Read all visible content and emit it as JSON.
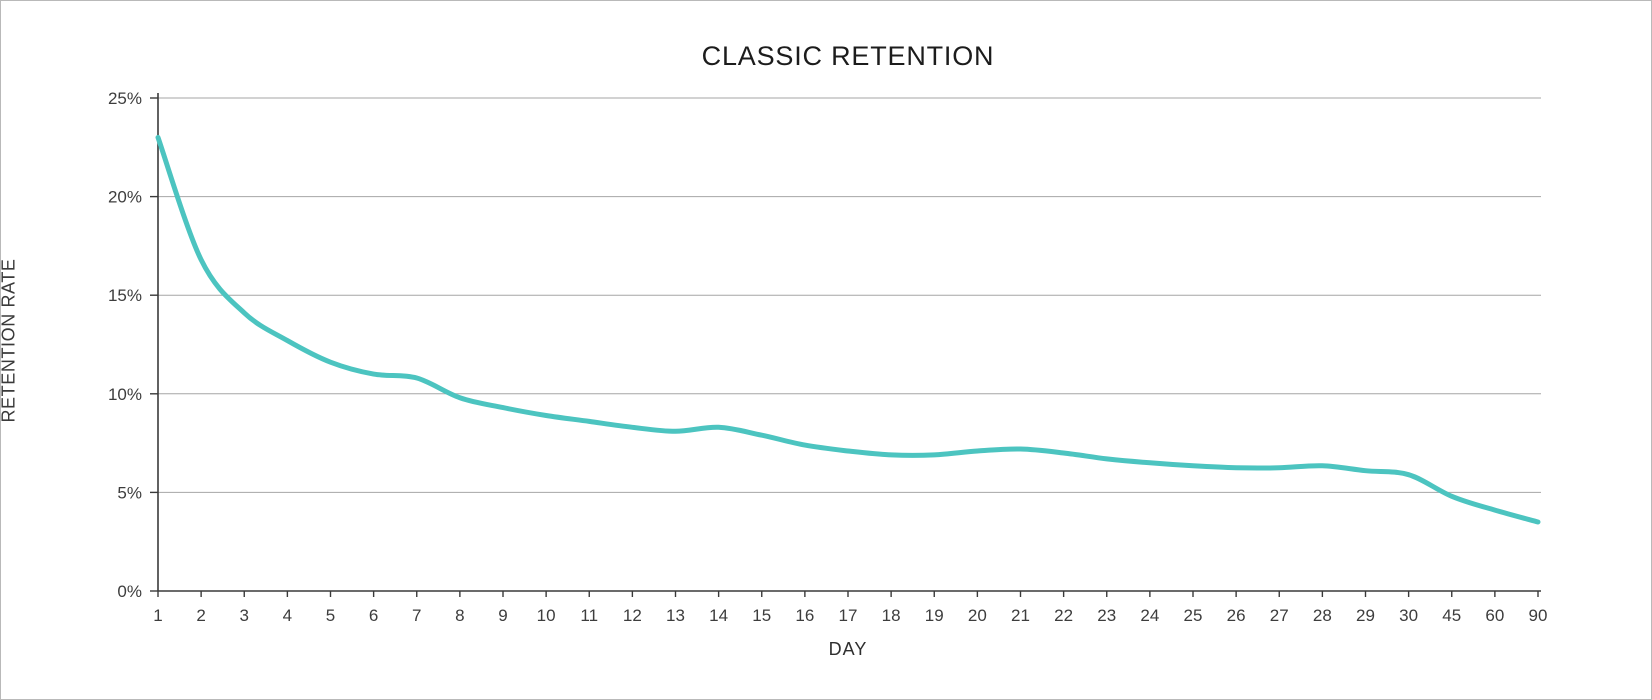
{
  "window": {
    "background": "#ffffff",
    "border_color": "#b9b9b9"
  },
  "chart_data": {
    "type": "line",
    "title": "CLASSIC RETENTION",
    "xlabel": "DAY",
    "ylabel": "RETENTION RATE",
    "categories": [
      "1",
      "2",
      "3",
      "4",
      "5",
      "6",
      "7",
      "8",
      "9",
      "10",
      "11",
      "12",
      "13",
      "14",
      "15",
      "16",
      "17",
      "18",
      "19",
      "20",
      "21",
      "22",
      "23",
      "24",
      "25",
      "26",
      "27",
      "28",
      "29",
      "30",
      "45",
      "60",
      "90"
    ],
    "series": [
      {
        "name": "classic-retention",
        "color": "#4cc4c0",
        "values": [
          23.0,
          16.8,
          14.1,
          12.7,
          11.6,
          11.0,
          10.8,
          9.8,
          9.3,
          8.9,
          8.6,
          8.3,
          8.1,
          8.3,
          7.9,
          7.4,
          7.1,
          6.9,
          6.9,
          7.1,
          7.2,
          7.0,
          6.7,
          6.5,
          6.35,
          6.25,
          6.25,
          6.35,
          6.1,
          5.9,
          4.8,
          4.1,
          3.5
        ]
      }
    ],
    "values_unit": "%",
    "ylim": [
      0,
      25
    ],
    "y_ticks": [
      0,
      5,
      10,
      15,
      20,
      25
    ],
    "y_tick_labels": [
      "0%",
      "5%",
      "10%",
      "15%",
      "20%",
      "25%"
    ],
    "grid": "horizontal",
    "legend": "none"
  },
  "colors": {
    "grid": "#a6a6a6",
    "axis": "#3a3a3a",
    "tick_text": "#3d3d3d",
    "title_text": "#1c1c1c"
  }
}
